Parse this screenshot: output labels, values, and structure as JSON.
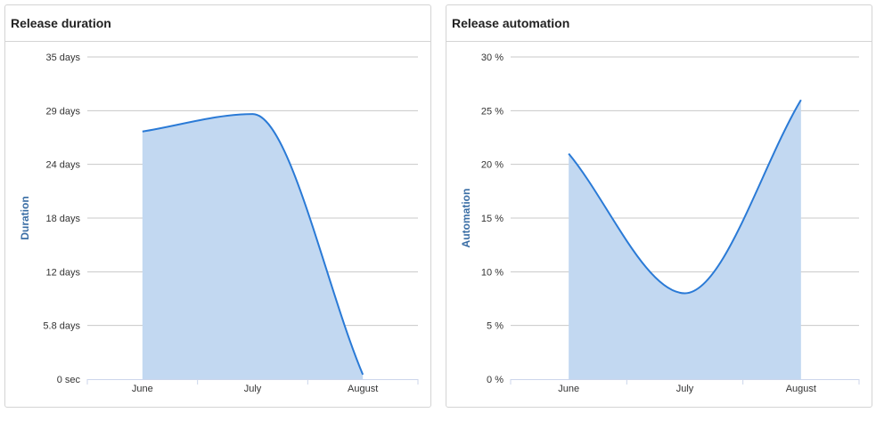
{
  "panels": [
    {
      "title": "Release duration",
      "chart_data": {
        "type": "area",
        "title": "Release duration",
        "xlabel": "",
        "ylabel": "Duration",
        "categories": [
          "June",
          "July",
          "August"
        ],
        "y_tick_labels": [
          "0 sec",
          "5.8 days",
          "12 days",
          "18 days",
          "24 days",
          "29 days",
          "35 days"
        ],
        "ylim": [
          0,
          35
        ],
        "series": [
          {
            "values": [
              26.9,
              28.8,
              0.5
            ]
          }
        ],
        "grid": true,
        "legend": "none"
      }
    },
    {
      "title": "Release automation",
      "chart_data": {
        "type": "area",
        "title": "Release automation",
        "xlabel": "",
        "ylabel": "Automation",
        "categories": [
          "June",
          "July",
          "August"
        ],
        "y_tick_labels": [
          "0 %",
          "5 %",
          "10 %",
          "15 %",
          "20 %",
          "25 %",
          "30 %"
        ],
        "ylim": [
          0,
          30
        ],
        "series": [
          {
            "values": [
              21,
              8,
              26
            ]
          }
        ],
        "grid": true,
        "legend": "none"
      }
    }
  ],
  "colors": {
    "line": "#2a7ad6",
    "fill": "#c2d8f1",
    "grid": "#c8c8c8",
    "axis": "#ccd6eb",
    "ylabel": "#3a6ea5"
  }
}
